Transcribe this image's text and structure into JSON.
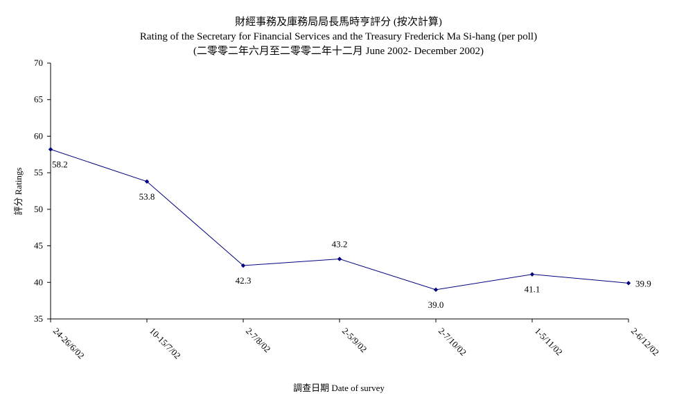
{
  "chart_data": {
    "type": "line",
    "title": "財經事務及庫務局局長馬時亨評分 (按次計算)",
    "subtitle": "Rating of the Secretary for Financial Services and the Treasury Frederick Ma Si-hang  (per poll)",
    "subtitle2": "(二零零二年六月至二零零二年十二月 June 2002- December 2002)",
    "xlabel": "調查日期 Date of survey",
    "ylabel": "評分 Ratings",
    "categories": [
      "24-26/6/02",
      "10-15/7/02",
      "2-7/8/02",
      "2-5/9/02",
      "2-7/10/02",
      "1-5/11/02",
      "2-6/12/02"
    ],
    "series": [
      {
        "values": [
          58.2,
          53.8,
          42.3,
          43.2,
          39.0,
          41.1,
          39.9
        ]
      }
    ],
    "data_labels": [
      "58.2",
      "53.8",
      "42.3",
      "43.2",
      "39.0",
      "41.1",
      "39.9"
    ],
    "label_positions": [
      "below",
      "below",
      "below",
      "above",
      "below",
      "below",
      "right"
    ],
    "ylim": [
      35,
      70
    ],
    "yticks": [
      35,
      40,
      45,
      50,
      55,
      60,
      65,
      70
    ],
    "grid": false,
    "legend": "none",
    "colors": {
      "line": "#000080",
      "marker": "#000080",
      "axis": "#000000"
    }
  }
}
